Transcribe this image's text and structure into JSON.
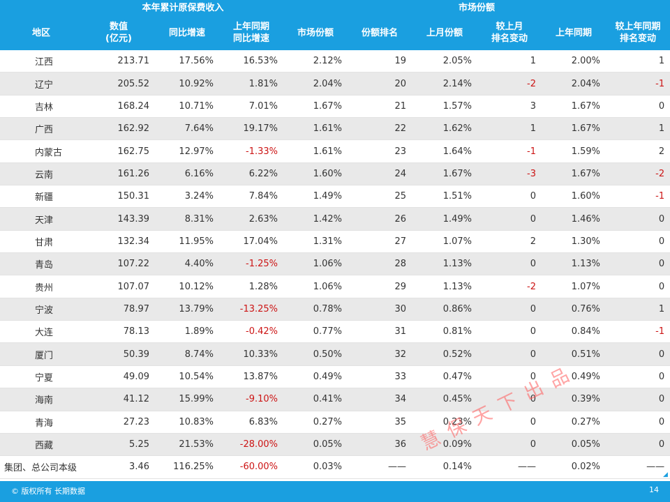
{
  "header": {
    "group_income": "本年累计原保费收入",
    "group_market": "市场份额",
    "col_region": "地区",
    "col_value": "数值\n(亿元)",
    "col_yoy": "同比增速",
    "col_last_yoy": "上年同期\n同比增速",
    "col_share": "市场份额",
    "col_rank": "份额排名",
    "col_last_month": "上月份额",
    "col_rank_chg_month": "较上月\n排名变动",
    "col_last_year": "上年同期",
    "col_rank_chg_year": "较上年同期\n排名变动"
  },
  "rows": [
    {
      "region": "江西",
      "value": "213.71",
      "yoy": "17.56%",
      "last_yoy": "16.53%",
      "share": "2.12%",
      "rank": "19",
      "last_month": "2.05%",
      "chg_month": "1",
      "last_year": "2.00%",
      "chg_year": "1"
    },
    {
      "region": "辽宁",
      "value": "205.52",
      "yoy": "10.92%",
      "last_yoy": "1.81%",
      "share": "2.04%",
      "rank": "20",
      "last_month": "2.14%",
      "chg_month": "-2",
      "last_year": "2.04%",
      "chg_year": "-1"
    },
    {
      "region": "吉林",
      "value": "168.24",
      "yoy": "10.71%",
      "last_yoy": "7.01%",
      "share": "1.67%",
      "rank": "21",
      "last_month": "1.57%",
      "chg_month": "3",
      "last_year": "1.67%",
      "chg_year": "0"
    },
    {
      "region": "广西",
      "value": "162.92",
      "yoy": "7.64%",
      "last_yoy": "19.17%",
      "share": "1.61%",
      "rank": "22",
      "last_month": "1.62%",
      "chg_month": "1",
      "last_year": "1.67%",
      "chg_year": "1"
    },
    {
      "region": "内蒙古",
      "value": "162.75",
      "yoy": "12.97%",
      "last_yoy": "-1.33%",
      "share": "1.61%",
      "rank": "23",
      "last_month": "1.64%",
      "chg_month": "-1",
      "last_year": "1.59%",
      "chg_year": "2"
    },
    {
      "region": "云南",
      "value": "161.26",
      "yoy": "6.16%",
      "last_yoy": "6.22%",
      "share": "1.60%",
      "rank": "24",
      "last_month": "1.67%",
      "chg_month": "-3",
      "last_year": "1.67%",
      "chg_year": "-2"
    },
    {
      "region": "新疆",
      "value": "150.31",
      "yoy": "3.24%",
      "last_yoy": "7.84%",
      "share": "1.49%",
      "rank": "25",
      "last_month": "1.51%",
      "chg_month": "0",
      "last_year": "1.60%",
      "chg_year": "-1"
    },
    {
      "region": "天津",
      "value": "143.39",
      "yoy": "8.31%",
      "last_yoy": "2.63%",
      "share": "1.42%",
      "rank": "26",
      "last_month": "1.49%",
      "chg_month": "0",
      "last_year": "1.46%",
      "chg_year": "0"
    },
    {
      "region": "甘肃",
      "value": "132.34",
      "yoy": "11.95%",
      "last_yoy": "17.04%",
      "share": "1.31%",
      "rank": "27",
      "last_month": "1.07%",
      "chg_month": "2",
      "last_year": "1.30%",
      "chg_year": "0"
    },
    {
      "region": "青岛",
      "value": "107.22",
      "yoy": "4.40%",
      "last_yoy": "-1.25%",
      "share": "1.06%",
      "rank": "28",
      "last_month": "1.13%",
      "chg_month": "0",
      "last_year": "1.13%",
      "chg_year": "0"
    },
    {
      "region": "贵州",
      "value": "107.07",
      "yoy": "10.12%",
      "last_yoy": "1.28%",
      "share": "1.06%",
      "rank": "29",
      "last_month": "1.13%",
      "chg_month": "-2",
      "last_year": "1.07%",
      "chg_year": "0"
    },
    {
      "region": "宁波",
      "value": "78.97",
      "yoy": "13.79%",
      "last_yoy": "-13.25%",
      "share": "0.78%",
      "rank": "30",
      "last_month": "0.86%",
      "chg_month": "0",
      "last_year": "0.76%",
      "chg_year": "1"
    },
    {
      "region": "大连",
      "value": "78.13",
      "yoy": "1.89%",
      "last_yoy": "-0.42%",
      "share": "0.77%",
      "rank": "31",
      "last_month": "0.81%",
      "chg_month": "0",
      "last_year": "0.84%",
      "chg_year": "-1"
    },
    {
      "region": "厦门",
      "value": "50.39",
      "yoy": "8.74%",
      "last_yoy": "10.33%",
      "share": "0.50%",
      "rank": "32",
      "last_month": "0.52%",
      "chg_month": "0",
      "last_year": "0.51%",
      "chg_year": "0"
    },
    {
      "region": "宁夏",
      "value": "49.09",
      "yoy": "10.54%",
      "last_yoy": "13.87%",
      "share": "0.49%",
      "rank": "33",
      "last_month": "0.47%",
      "chg_month": "0",
      "last_year": "0.49%",
      "chg_year": "0"
    },
    {
      "region": "海南",
      "value": "41.12",
      "yoy": "15.99%",
      "last_yoy": "-9.10%",
      "share": "0.41%",
      "rank": "34",
      "last_month": "0.45%",
      "chg_month": "0",
      "last_year": "0.39%",
      "chg_year": "0"
    },
    {
      "region": "青海",
      "value": "27.23",
      "yoy": "10.83%",
      "last_yoy": "6.83%",
      "share": "0.27%",
      "rank": "35",
      "last_month": "0.23%",
      "chg_month": "0",
      "last_year": "0.27%",
      "chg_year": "0"
    },
    {
      "region": "西藏",
      "value": "5.25",
      "yoy": "21.53%",
      "last_yoy": "-28.00%",
      "share": "0.05%",
      "rank": "36",
      "last_month": "0.09%",
      "chg_month": "0",
      "last_year": "0.05%",
      "chg_year": "0"
    },
    {
      "region": "集团、总公司本级",
      "value": "3.46",
      "yoy": "116.25%",
      "last_yoy": "-60.00%",
      "share": "0.03%",
      "rank": "——",
      "last_month": "0.14%",
      "chg_month": "——",
      "last_year": "0.02%",
      "chg_year": "——"
    }
  ],
  "footer": {
    "copyright": "© 版权所有 长期数据",
    "page_number": "14"
  },
  "watermark": "慧保天下出品",
  "colors": {
    "header_bg": "#1a9fe0",
    "negative": "#cc1414",
    "shaded_row": "#e9e9e9"
  }
}
